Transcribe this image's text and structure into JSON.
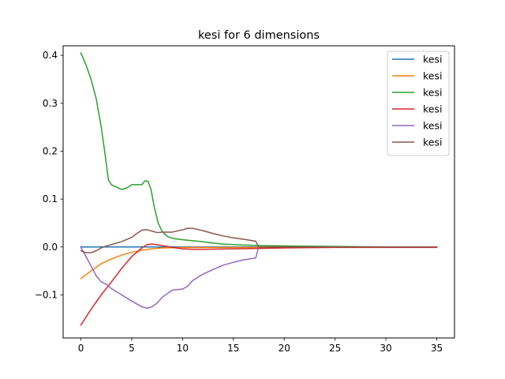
{
  "chart_data": {
    "type": "line",
    "title": "kesi for 6 dimensions",
    "xlabel": "",
    "ylabel": "",
    "xlim": [
      -1.75,
      36.75
    ],
    "ylim": [
      -0.19,
      0.42
    ],
    "xticks": [
      0,
      5,
      10,
      15,
      20,
      25,
      30,
      35
    ],
    "yticks": [
      -0.1,
      0.0,
      0.1,
      0.2,
      0.3,
      0.4
    ],
    "ytick_labels": [
      "−0.1",
      "0.0",
      "0.1",
      "0.2",
      "0.3",
      "0.4"
    ],
    "grid": false,
    "legend_position": "top-right",
    "series": [
      {
        "name": "kesi",
        "color": "#1f77b4",
        "x": [
          0,
          35
        ],
        "y": [
          0.0,
          0.0
        ]
      },
      {
        "name": "kesi",
        "color": "#ff7f0e",
        "x": [
          0,
          1,
          2,
          3,
          4,
          5,
          6,
          7,
          8,
          10,
          12,
          15,
          17.5,
          20,
          25,
          30,
          35
        ],
        "y": [
          -0.066,
          -0.05,
          -0.035,
          -0.025,
          -0.017,
          -0.011,
          -0.007,
          -0.004,
          -0.002,
          -0.001,
          -0.001,
          -0.001,
          -0.001,
          0.0,
          0.0,
          0.0,
          0.0
        ]
      },
      {
        "name": "kesi",
        "color": "#2ca02c",
        "x": [
          0,
          0.5,
          1,
          1.5,
          2,
          2.4,
          2.7,
          3,
          3.5,
          4,
          4.5,
          5,
          5.5,
          6,
          6.3,
          6.6,
          6.9,
          7.2,
          7.6,
          8,
          8.5,
          9,
          10,
          11,
          12,
          13,
          14,
          15,
          16,
          17.5,
          20,
          25,
          30,
          35
        ],
        "y": [
          0.405,
          0.38,
          0.35,
          0.31,
          0.25,
          0.19,
          0.14,
          0.13,
          0.125,
          0.12,
          0.123,
          0.13,
          0.13,
          0.13,
          0.138,
          0.137,
          0.12,
          0.085,
          0.05,
          0.032,
          0.022,
          0.018,
          0.015,
          0.013,
          0.011,
          0.008,
          0.006,
          0.005,
          0.004,
          0.003,
          0.002,
          0.001,
          0.0,
          0.0
        ]
      },
      {
        "name": "kesi",
        "color": "#d62728",
        "x": [
          0,
          1,
          2,
          3,
          4,
          5,
          6,
          6.5,
          7,
          8,
          9,
          10,
          11,
          12,
          15,
          17.5,
          20,
          25,
          30,
          35
        ],
        "y": [
          -0.163,
          -0.13,
          -0.1,
          -0.073,
          -0.045,
          -0.02,
          -0.002,
          0.005,
          0.006,
          0.003,
          -0.001,
          -0.004,
          -0.005,
          -0.005,
          -0.004,
          -0.003,
          -0.002,
          -0.001,
          -0.001,
          -0.001
        ]
      },
      {
        "name": "kesi",
        "color": "#9467bd",
        "x": [
          0,
          0.5,
          1,
          1.5,
          2,
          2.5,
          3,
          4,
          5,
          6,
          6.5,
          7,
          7.5,
          8,
          9,
          10,
          10.5,
          11,
          12,
          13,
          14,
          15,
          16,
          17.2,
          17.35,
          17.5,
          20,
          25,
          30,
          35
        ],
        "y": [
          -0.001,
          -0.02,
          -0.04,
          -0.06,
          -0.073,
          -0.078,
          -0.087,
          -0.1,
          -0.113,
          -0.125,
          -0.128,
          -0.125,
          -0.117,
          -0.105,
          -0.09,
          -0.088,
          -0.082,
          -0.07,
          -0.057,
          -0.047,
          -0.038,
          -0.032,
          -0.027,
          -0.023,
          -0.01,
          0.0,
          0.0,
          0.0,
          0.0,
          0.0
        ]
      },
      {
        "name": "kesi",
        "color": "#8c564b",
        "x": [
          0,
          0.5,
          1,
          1.5,
          2,
          2.5,
          3,
          4,
          5,
          5.5,
          6,
          6.5,
          7,
          7.5,
          8,
          9,
          10,
          10.5,
          11,
          12,
          13,
          14,
          15,
          16,
          17.2,
          17.35,
          17.5,
          20,
          25,
          30,
          35
        ],
        "y": [
          -0.008,
          -0.012,
          -0.012,
          -0.008,
          -0.002,
          0.002,
          0.005,
          0.011,
          0.02,
          0.028,
          0.035,
          0.036,
          0.033,
          0.03,
          0.031,
          0.031,
          0.036,
          0.039,
          0.039,
          0.034,
          0.028,
          0.023,
          0.019,
          0.016,
          0.012,
          0.005,
          0.0,
          0.0,
          0.0,
          0.0,
          0.0
        ]
      }
    ]
  }
}
